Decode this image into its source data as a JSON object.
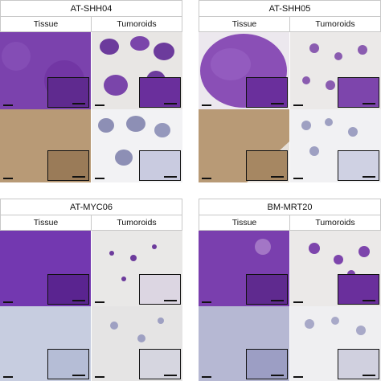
{
  "panels": [
    {
      "title": "AT-SHH04",
      "col_left": "Tissue",
      "col_right": "Tumoroids"
    },
    {
      "title": "AT-SHH05",
      "col_left": "Tissue",
      "col_right": "Tumoroids"
    },
    {
      "title": "AT-MYC06",
      "col_left": "Tissue",
      "col_right": "Tumoroids"
    },
    {
      "title": "BM-MRT20",
      "col_left": "Tissue",
      "col_right": "Tumoroids"
    }
  ],
  "colors": {
    "he_purple": "#7a3fae",
    "he_light": "#b58fd0",
    "ihc_brown": "#b89a76",
    "ihc_blue": "#b7bfd6",
    "bg_gray": "#e8e6e4"
  }
}
